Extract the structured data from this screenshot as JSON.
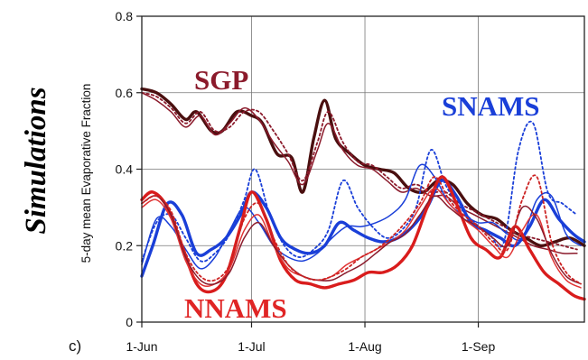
{
  "chart_data": {
    "type": "line",
    "side_label": "Simulations",
    "panel_label": "c)",
    "xlabel": "",
    "ylabel": "5-day mean Evaporative Fraction",
    "ylim": [
      0,
      0.8
    ],
    "xlim": [
      "2000-06-01",
      "2000-09-30"
    ],
    "y_ticks": [
      {
        "value": 0,
        "label": "0"
      },
      {
        "value": 0.2,
        "label": "0.2"
      },
      {
        "value": 0.4,
        "label": "0.4"
      },
      {
        "value": 0.6,
        "label": "0.6"
      },
      {
        "value": 0.8,
        "label": "0.8"
      }
    ],
    "x_ticks": [
      {
        "date": "2000-06-01",
        "label": "1-Jun"
      },
      {
        "date": "2000-07-01",
        "label": "1-Jul"
      },
      {
        "date": "2000-08-01",
        "label": "1-Aug"
      },
      {
        "date": "2000-09-01",
        "label": "1-Sep"
      }
    ],
    "grid": true,
    "region_labels": [
      {
        "text": "SGP",
        "color": "#8b1a2b"
      },
      {
        "text": "SNAMS",
        "color": "#1a3fd8"
      },
      {
        "text": "NNAMS",
        "color": "#e02525"
      }
    ],
    "series": [
      {
        "region": "SGP",
        "color": "#4a0f0f",
        "style": "thick",
        "x": [
          "2000-06-01",
          "2000-06-05",
          "2000-06-09",
          "2000-06-13",
          "2000-06-16",
          "2000-06-20",
          "2000-06-23",
          "2000-06-27",
          "2000-07-01",
          "2000-07-04",
          "2000-07-08",
          "2000-07-12",
          "2000-07-15",
          "2000-07-18",
          "2000-07-21",
          "2000-07-24",
          "2000-07-28",
          "2000-08-01",
          "2000-08-05",
          "2000-08-09",
          "2000-08-13",
          "2000-08-17",
          "2000-08-21",
          "2000-08-25",
          "2000-08-29",
          "2000-09-02",
          "2000-09-06",
          "2000-09-10",
          "2000-09-14",
          "2000-09-18",
          "2000-09-22",
          "2000-09-26",
          "2000-09-30"
        ],
        "y": [
          0.61,
          0.6,
          0.57,
          0.53,
          0.55,
          0.5,
          0.5,
          0.55,
          0.54,
          0.52,
          0.44,
          0.43,
          0.34,
          0.48,
          0.58,
          0.48,
          0.44,
          0.41,
          0.4,
          0.39,
          0.35,
          0.34,
          0.37,
          0.36,
          0.31,
          0.28,
          0.27,
          0.24,
          0.22,
          0.2,
          0.21,
          0.22,
          0.2
        ]
      },
      {
        "region": "SGP",
        "color": "#8b1a2b",
        "style": "solid",
        "x": [
          "2000-06-01",
          "2000-06-05",
          "2000-06-09",
          "2000-06-13",
          "2000-06-17",
          "2000-06-21",
          "2000-06-25",
          "2000-06-29",
          "2000-07-03",
          "2000-07-07",
          "2000-07-11",
          "2000-07-15",
          "2000-07-19",
          "2000-07-22",
          "2000-07-26",
          "2000-07-30",
          "2000-08-03",
          "2000-08-07",
          "2000-08-11",
          "2000-08-15",
          "2000-08-19",
          "2000-08-23",
          "2000-08-27",
          "2000-08-31",
          "2000-09-04",
          "2000-09-08",
          "2000-09-12",
          "2000-09-16",
          "2000-09-20",
          "2000-09-24",
          "2000-09-28"
        ],
        "y": [
          0.6,
          0.58,
          0.55,
          0.51,
          0.54,
          0.49,
          0.52,
          0.56,
          0.53,
          0.47,
          0.42,
          0.36,
          0.45,
          0.52,
          0.45,
          0.41,
          0.4,
          0.37,
          0.34,
          0.35,
          0.33,
          0.33,
          0.3,
          0.28,
          0.26,
          0.24,
          0.22,
          0.2,
          0.19,
          0.18,
          0.18
        ]
      },
      {
        "region": "SGP",
        "color": "#8b1a2b",
        "style": "dotted",
        "x": [
          "2000-06-01",
          "2000-06-05",
          "2000-06-09",
          "2000-06-13",
          "2000-06-17",
          "2000-06-21",
          "2000-06-25",
          "2000-06-29",
          "2000-07-03",
          "2000-07-07",
          "2000-07-11",
          "2000-07-15",
          "2000-07-19",
          "2000-07-22",
          "2000-07-26",
          "2000-07-30",
          "2000-08-03",
          "2000-08-07",
          "2000-08-11",
          "2000-08-15",
          "2000-08-19",
          "2000-08-23",
          "2000-08-27",
          "2000-08-31",
          "2000-09-04",
          "2000-09-08",
          "2000-09-12",
          "2000-09-16",
          "2000-09-20",
          "2000-09-24",
          "2000-09-28"
        ],
        "y": [
          0.6,
          0.59,
          0.56,
          0.52,
          0.55,
          0.5,
          0.51,
          0.55,
          0.55,
          0.5,
          0.44,
          0.37,
          0.47,
          0.55,
          0.47,
          0.42,
          0.41,
          0.38,
          0.35,
          0.36,
          0.34,
          0.34,
          0.31,
          0.29,
          0.27,
          0.25,
          0.23,
          0.22,
          0.21,
          0.2,
          0.19
        ]
      },
      {
        "region": "SNAMS",
        "color": "#1a3fd8",
        "style": "thick",
        "x": [
          "2000-06-01",
          "2000-06-04",
          "2000-06-08",
          "2000-06-12",
          "2000-06-16",
          "2000-06-20",
          "2000-06-24",
          "2000-06-28",
          "2000-07-01",
          "2000-07-05",
          "2000-07-09",
          "2000-07-13",
          "2000-07-17",
          "2000-07-21",
          "2000-07-25",
          "2000-07-29",
          "2000-08-02",
          "2000-08-06",
          "2000-08-10",
          "2000-08-14",
          "2000-08-18",
          "2000-08-22",
          "2000-08-26",
          "2000-08-30",
          "2000-09-03",
          "2000-09-07",
          "2000-09-11",
          "2000-09-15",
          "2000-09-19",
          "2000-09-23",
          "2000-09-27",
          "2000-09-30"
        ],
        "y": [
          0.12,
          0.2,
          0.31,
          0.28,
          0.18,
          0.19,
          0.22,
          0.28,
          0.34,
          0.3,
          0.22,
          0.19,
          0.18,
          0.2,
          0.26,
          0.24,
          0.22,
          0.21,
          0.22,
          0.25,
          0.3,
          0.37,
          0.33,
          0.26,
          0.24,
          0.22,
          0.2,
          0.25,
          0.32,
          0.27,
          0.23,
          0.21
        ]
      },
      {
        "region": "SNAMS",
        "color": "#1a3fd8",
        "style": "solid",
        "x": [
          "2000-06-01",
          "2000-06-05",
          "2000-06-09",
          "2000-06-13",
          "2000-06-17",
          "2000-06-21",
          "2000-06-25",
          "2000-06-29",
          "2000-07-03",
          "2000-07-07",
          "2000-07-11",
          "2000-07-15",
          "2000-07-19",
          "2000-07-23",
          "2000-07-27",
          "2000-07-31",
          "2000-08-04",
          "2000-08-08",
          "2000-08-12",
          "2000-08-16",
          "2000-08-20",
          "2000-08-24",
          "2000-08-28",
          "2000-09-01",
          "2000-09-05",
          "2000-09-09",
          "2000-09-13",
          "2000-09-17",
          "2000-09-21",
          "2000-09-25",
          "2000-09-29"
        ],
        "y": [
          0.15,
          0.27,
          0.25,
          0.19,
          0.14,
          0.17,
          0.24,
          0.3,
          0.26,
          0.2,
          0.17,
          0.16,
          0.18,
          0.22,
          0.25,
          0.25,
          0.26,
          0.28,
          0.32,
          0.41,
          0.38,
          0.31,
          0.28,
          0.26,
          0.26,
          0.23,
          0.22,
          0.32,
          0.33,
          0.23,
          0.2
        ]
      },
      {
        "region": "SNAMS",
        "color": "#1a3fd8",
        "style": "dotted",
        "x": [
          "2000-06-01",
          "2000-06-05",
          "2000-06-09",
          "2000-06-13",
          "2000-06-17",
          "2000-06-21",
          "2000-06-25",
          "2000-06-29",
          "2000-07-02",
          "2000-07-06",
          "2000-07-10",
          "2000-07-14",
          "2000-07-18",
          "2000-07-22",
          "2000-07-26",
          "2000-07-30",
          "2000-08-03",
          "2000-08-07",
          "2000-08-11",
          "2000-08-15",
          "2000-08-19",
          "2000-08-23",
          "2000-08-27",
          "2000-08-31",
          "2000-09-04",
          "2000-09-08",
          "2000-09-12",
          "2000-09-16",
          "2000-09-20",
          "2000-09-24",
          "2000-09-28"
        ],
        "y": [
          0.16,
          0.26,
          0.28,
          0.22,
          0.16,
          0.18,
          0.23,
          0.32,
          0.4,
          0.28,
          0.2,
          0.17,
          0.19,
          0.24,
          0.37,
          0.3,
          0.25,
          0.22,
          0.24,
          0.3,
          0.45,
          0.36,
          0.3,
          0.26,
          0.23,
          0.21,
          0.45,
          0.52,
          0.34,
          0.31,
          0.28
        ]
      },
      {
        "region": "NNAMS",
        "color": "#d91c1c",
        "style": "thick",
        "x": [
          "2000-06-01",
          "2000-06-04",
          "2000-06-08",
          "2000-06-12",
          "2000-06-16",
          "2000-06-20",
          "2000-06-24",
          "2000-06-28",
          "2000-07-01",
          "2000-07-05",
          "2000-07-09",
          "2000-07-13",
          "2000-07-17",
          "2000-07-21",
          "2000-07-25",
          "2000-07-29",
          "2000-08-02",
          "2000-08-06",
          "2000-08-10",
          "2000-08-14",
          "2000-08-18",
          "2000-08-22",
          "2000-08-26",
          "2000-08-30",
          "2000-09-03",
          "2000-09-07",
          "2000-09-11",
          "2000-09-15",
          "2000-09-19",
          "2000-09-23",
          "2000-09-27",
          "2000-09-30"
        ],
        "y": [
          0.32,
          0.34,
          0.3,
          0.2,
          0.1,
          0.08,
          0.12,
          0.25,
          0.34,
          0.27,
          0.16,
          0.11,
          0.1,
          0.09,
          0.1,
          0.11,
          0.13,
          0.13,
          0.15,
          0.2,
          0.3,
          0.38,
          0.31,
          0.22,
          0.19,
          0.17,
          0.25,
          0.19,
          0.13,
          0.1,
          0.07,
          0.06
        ]
      },
      {
        "region": "NNAMS",
        "color": "#e03333",
        "style": "solid",
        "x": [
          "2000-06-01",
          "2000-06-05",
          "2000-06-09",
          "2000-06-13",
          "2000-06-17",
          "2000-06-21",
          "2000-06-25",
          "2000-06-29",
          "2000-07-03",
          "2000-07-07",
          "2000-07-11",
          "2000-07-15",
          "2000-07-19",
          "2000-07-23",
          "2000-07-27",
          "2000-07-31",
          "2000-08-04",
          "2000-08-08",
          "2000-08-12",
          "2000-08-16",
          "2000-08-20",
          "2000-08-24",
          "2000-08-28",
          "2000-09-01",
          "2000-09-05",
          "2000-09-09",
          "2000-09-13",
          "2000-09-17",
          "2000-09-21",
          "2000-09-25",
          "2000-09-29"
        ],
        "y": [
          0.3,
          0.32,
          0.27,
          0.16,
          0.1,
          0.1,
          0.14,
          0.24,
          0.28,
          0.2,
          0.14,
          0.12,
          0.11,
          0.12,
          0.15,
          0.17,
          0.19,
          0.21,
          0.24,
          0.3,
          0.35,
          0.31,
          0.27,
          0.24,
          0.2,
          0.17,
          0.24,
          0.28,
          0.17,
          0.11,
          0.09
        ]
      },
      {
        "region": "NNAMS",
        "color": "#8b1a2b",
        "style": "solid",
        "x": [
          "2000-06-01",
          "2000-06-05",
          "2000-06-09",
          "2000-06-13",
          "2000-06-17",
          "2000-06-21",
          "2000-06-25",
          "2000-06-29",
          "2000-07-03",
          "2000-07-07",
          "2000-07-11",
          "2000-07-15",
          "2000-07-19",
          "2000-07-23",
          "2000-07-27",
          "2000-07-31",
          "2000-08-04",
          "2000-08-08",
          "2000-08-12",
          "2000-08-16",
          "2000-08-20",
          "2000-08-24",
          "2000-08-28",
          "2000-09-01",
          "2000-09-05",
          "2000-09-09",
          "2000-09-13",
          "2000-09-17",
          "2000-09-21",
          "2000-09-25",
          "2000-09-29"
        ],
        "y": [
          0.31,
          0.33,
          0.28,
          0.17,
          0.11,
          0.1,
          0.13,
          0.22,
          0.26,
          0.2,
          0.15,
          0.12,
          0.11,
          0.11,
          0.13,
          0.15,
          0.18,
          0.21,
          0.23,
          0.28,
          0.33,
          0.3,
          0.27,
          0.25,
          0.22,
          0.2,
          0.3,
          0.27,
          0.18,
          0.12,
          0.1
        ]
      },
      {
        "region": "NNAMS",
        "color": "#cc2222",
        "style": "dotted",
        "x": [
          "2000-06-01",
          "2000-06-05",
          "2000-06-09",
          "2000-06-13",
          "2000-06-17",
          "2000-06-21",
          "2000-06-25",
          "2000-06-29",
          "2000-07-03",
          "2000-07-07",
          "2000-07-11",
          "2000-07-15",
          "2000-07-19",
          "2000-07-23",
          "2000-07-27",
          "2000-07-31",
          "2000-08-04",
          "2000-08-08",
          "2000-08-12",
          "2000-08-16",
          "2000-08-20",
          "2000-08-24",
          "2000-08-28",
          "2000-09-01",
          "2000-09-05",
          "2000-09-09",
          "2000-09-13",
          "2000-09-17",
          "2000-09-21",
          "2000-09-25",
          "2000-09-29"
        ],
        "y": [
          0.31,
          0.33,
          0.29,
          0.18,
          0.12,
          0.11,
          0.15,
          0.27,
          0.31,
          0.22,
          0.15,
          0.12,
          0.11,
          0.12,
          0.14,
          0.17,
          0.19,
          0.22,
          0.26,
          0.31,
          0.38,
          0.32,
          0.28,
          0.25,
          0.21,
          0.19,
          0.32,
          0.38,
          0.21,
          0.13,
          0.1
        ]
      }
    ]
  }
}
